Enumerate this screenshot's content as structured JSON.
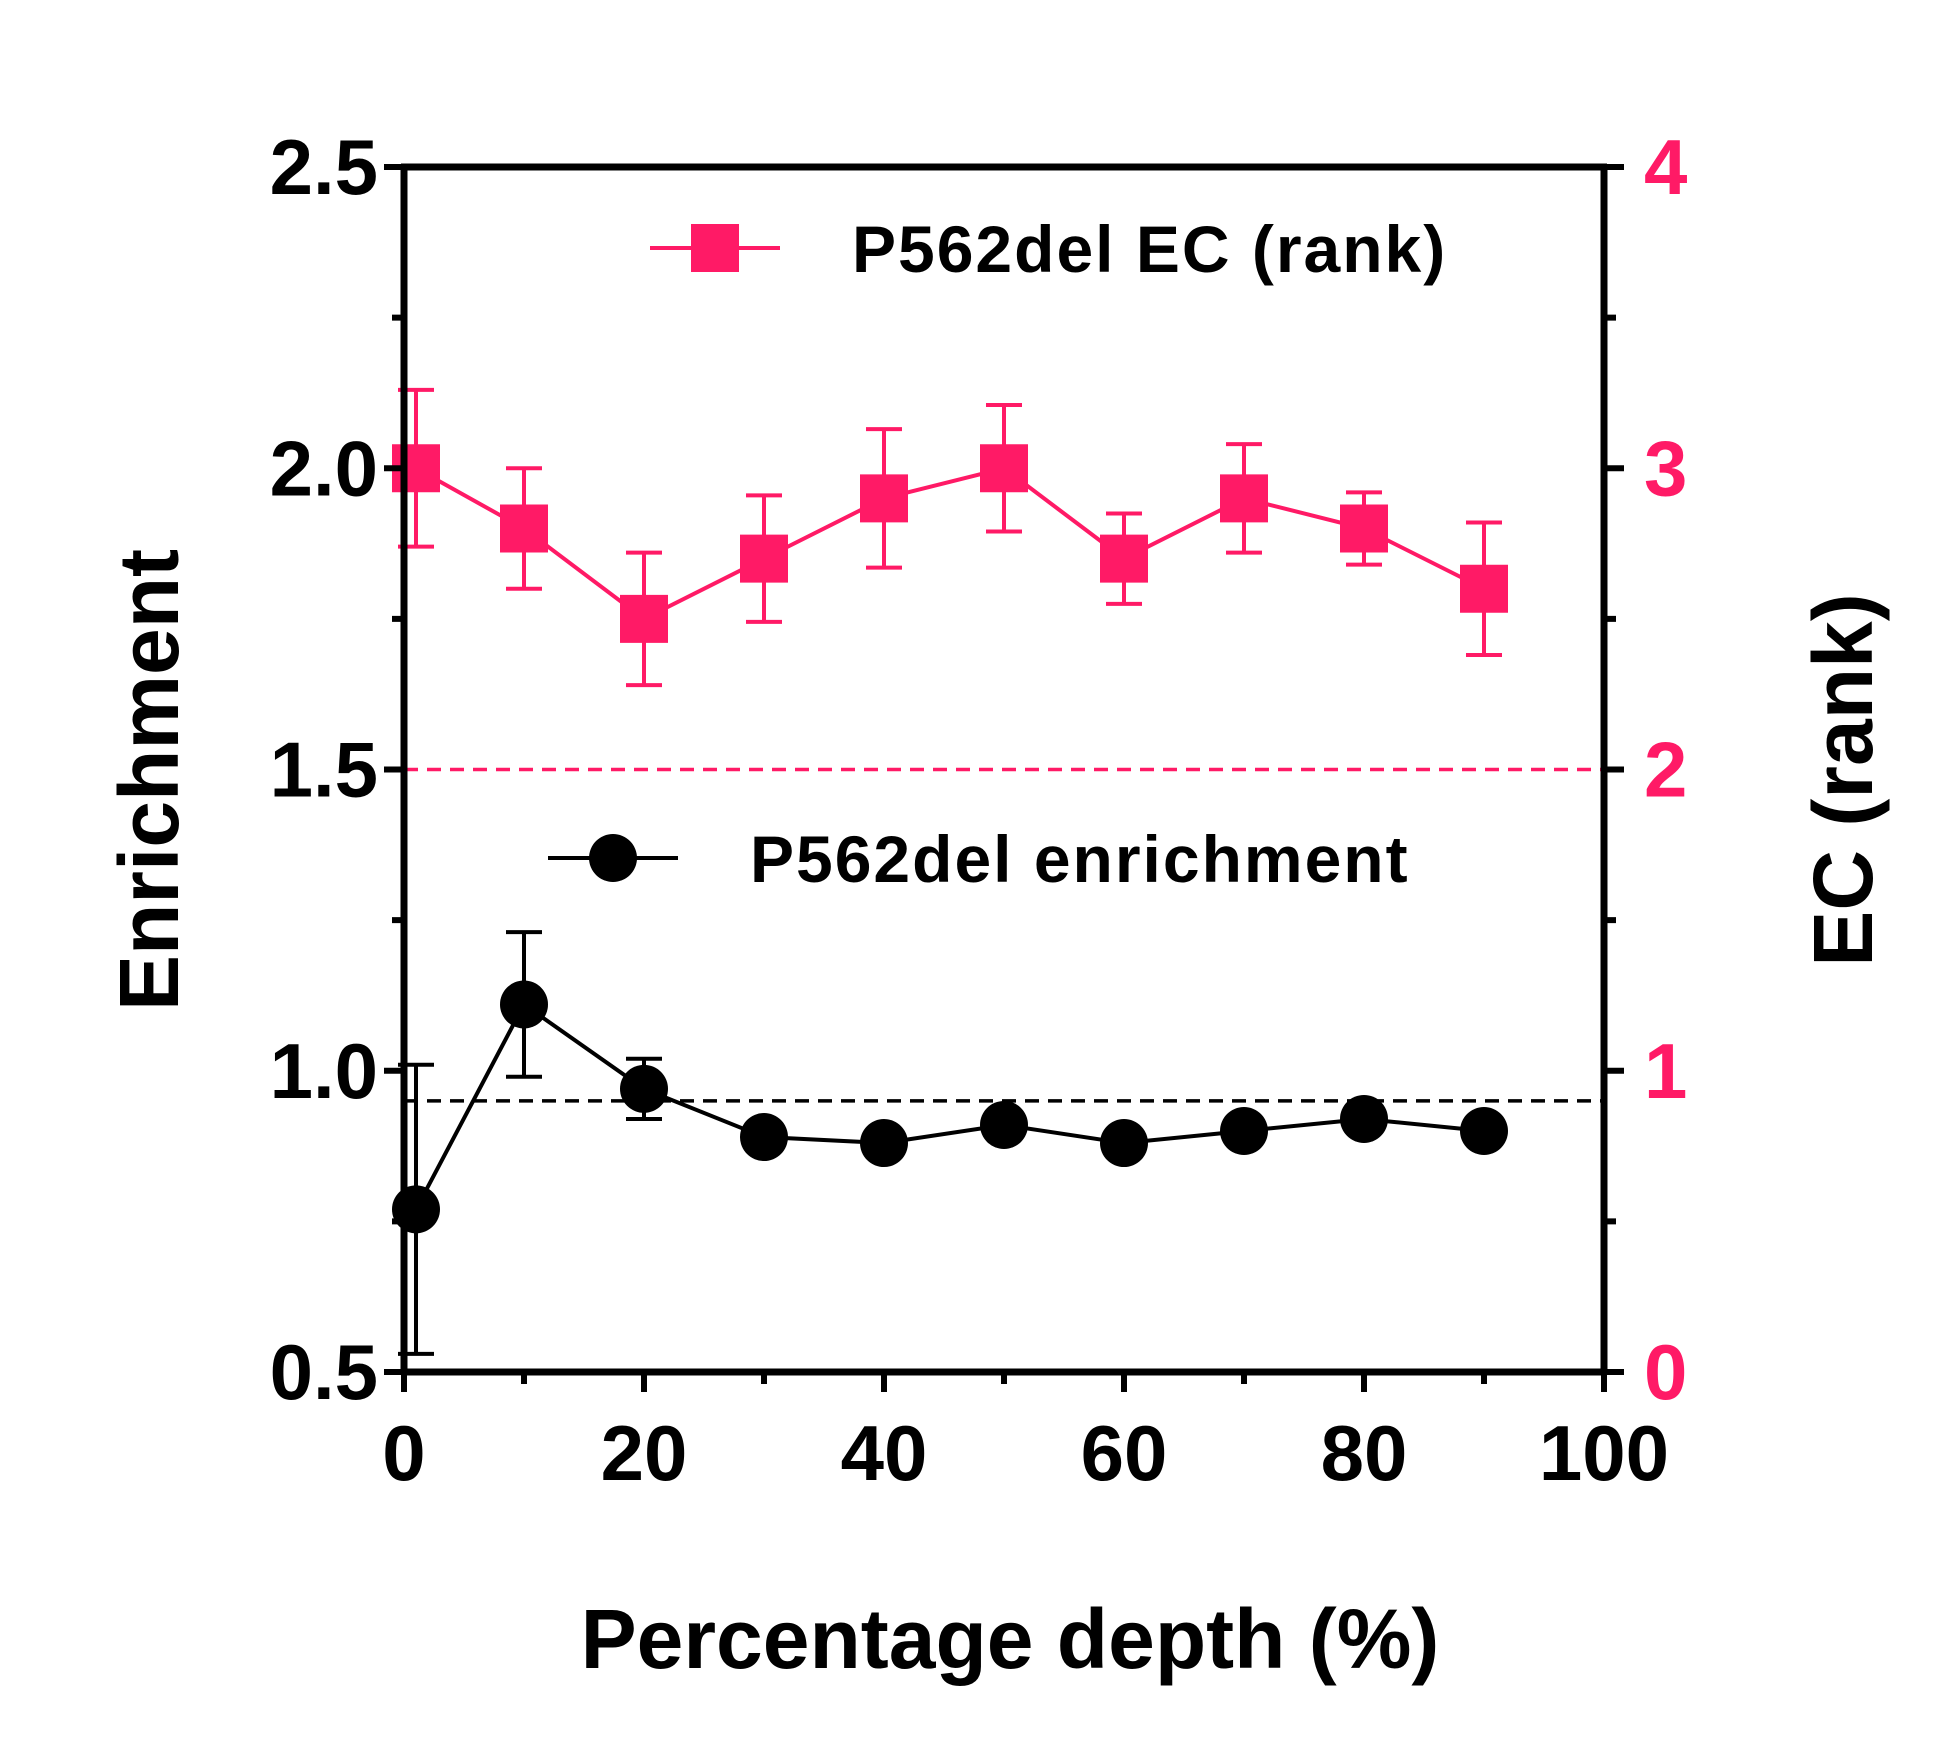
{
  "chart_data": {
    "type": "line",
    "xlabel": "Percentage depth  (%)",
    "ylabel_left": "Enrichment",
    "ylabel_right": "EC (rank)",
    "xlim": [
      0,
      100
    ],
    "ylim_left": [
      0.5,
      2.5
    ],
    "ylim_right": [
      0,
      4
    ],
    "x_ticks": [
      "0",
      "20",
      "40",
      "60",
      "80",
      "100"
    ],
    "y_ticks_left": [
      "0.5",
      "1.0",
      "1.5",
      "2.0",
      "2.5"
    ],
    "y_ticks_right": [
      "0",
      "1",
      "2",
      "3",
      "4"
    ],
    "grid": false,
    "legend_position": "inside, upper right (one entry above each series)",
    "reference_lines": [
      {
        "axis": "right",
        "y": 2.0,
        "color": "#ff1a66",
        "style": "dashed"
      },
      {
        "axis": "left",
        "y": 0.95,
        "color": "#000000",
        "style": "dashed"
      }
    ],
    "series": [
      {
        "name": "P562del EC (rank)",
        "axis": "right",
        "marker": "square",
        "color": "#ff1a66",
        "x": [
          1,
          10,
          20,
          30,
          40,
          50,
          60,
          70,
          80,
          90
        ],
        "y": [
          3.0,
          2.8,
          2.5,
          2.7,
          2.9,
          3.0,
          2.7,
          2.9,
          2.8,
          2.6
        ],
        "err": [
          0.26,
          0.2,
          0.22,
          0.21,
          0.23,
          0.21,
          0.15,
          0.18,
          0.12,
          0.22
        ]
      },
      {
        "name": "P562del enrichment",
        "axis": "left",
        "marker": "circle",
        "color": "#000000",
        "x": [
          1,
          10,
          20,
          30,
          40,
          50,
          60,
          70,
          80,
          90
        ],
        "y": [
          0.77,
          1.11,
          0.97,
          0.89,
          0.88,
          0.91,
          0.88,
          0.9,
          0.92,
          0.9
        ],
        "err": [
          0.24,
          0.12,
          0.05,
          0,
          0,
          0,
          0,
          0,
          0,
          0
        ]
      }
    ]
  }
}
